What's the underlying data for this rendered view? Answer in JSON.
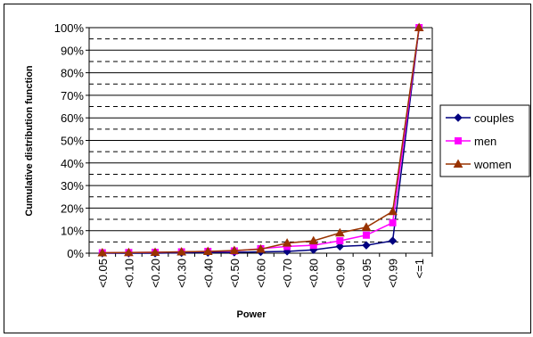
{
  "chart_data": {
    "type": "line",
    "title": "",
    "xlabel": "Power",
    "ylabel": "Cumulative distribution function",
    "categories": [
      "<0.05",
      "<0.10",
      "<0.20",
      "<0.30",
      "<0.40",
      "<0.50",
      "<0.60",
      "<0.70",
      "<0.80",
      "<0.90",
      "<0.95",
      "<0.99",
      "<=1"
    ],
    "ylim": [
      0,
      100
    ],
    "y_tick_labels": [
      "0%",
      "10%",
      "20%",
      "30%",
      "40%",
      "50%",
      "60%",
      "70%",
      "80%",
      "90%",
      "100%"
    ],
    "gridlines": "solid at 10% steps, dashed at 5% offsets",
    "legend_position": "right",
    "series": [
      {
        "name": "couples",
        "color": "#000080",
        "marker": "diamond",
        "values": [
          0,
          0,
          0,
          0.2,
          0.3,
          0.4,
          0.6,
          0.8,
          1.5,
          3,
          3.5,
          5.5,
          100
        ]
      },
      {
        "name": "men",
        "color": "#FF00FF",
        "marker": "square",
        "values": [
          0.2,
          0.3,
          0.4,
          0.6,
          0.8,
          1,
          2,
          3,
          3.5,
          5.5,
          8,
          13.5,
          100
        ]
      },
      {
        "name": "women",
        "color": "#993300",
        "marker": "triangle",
        "values": [
          0.2,
          0.3,
          0.4,
          0.6,
          0.8,
          1.2,
          1.8,
          4.5,
          5.5,
          9,
          11.5,
          18.5,
          100
        ]
      }
    ]
  }
}
